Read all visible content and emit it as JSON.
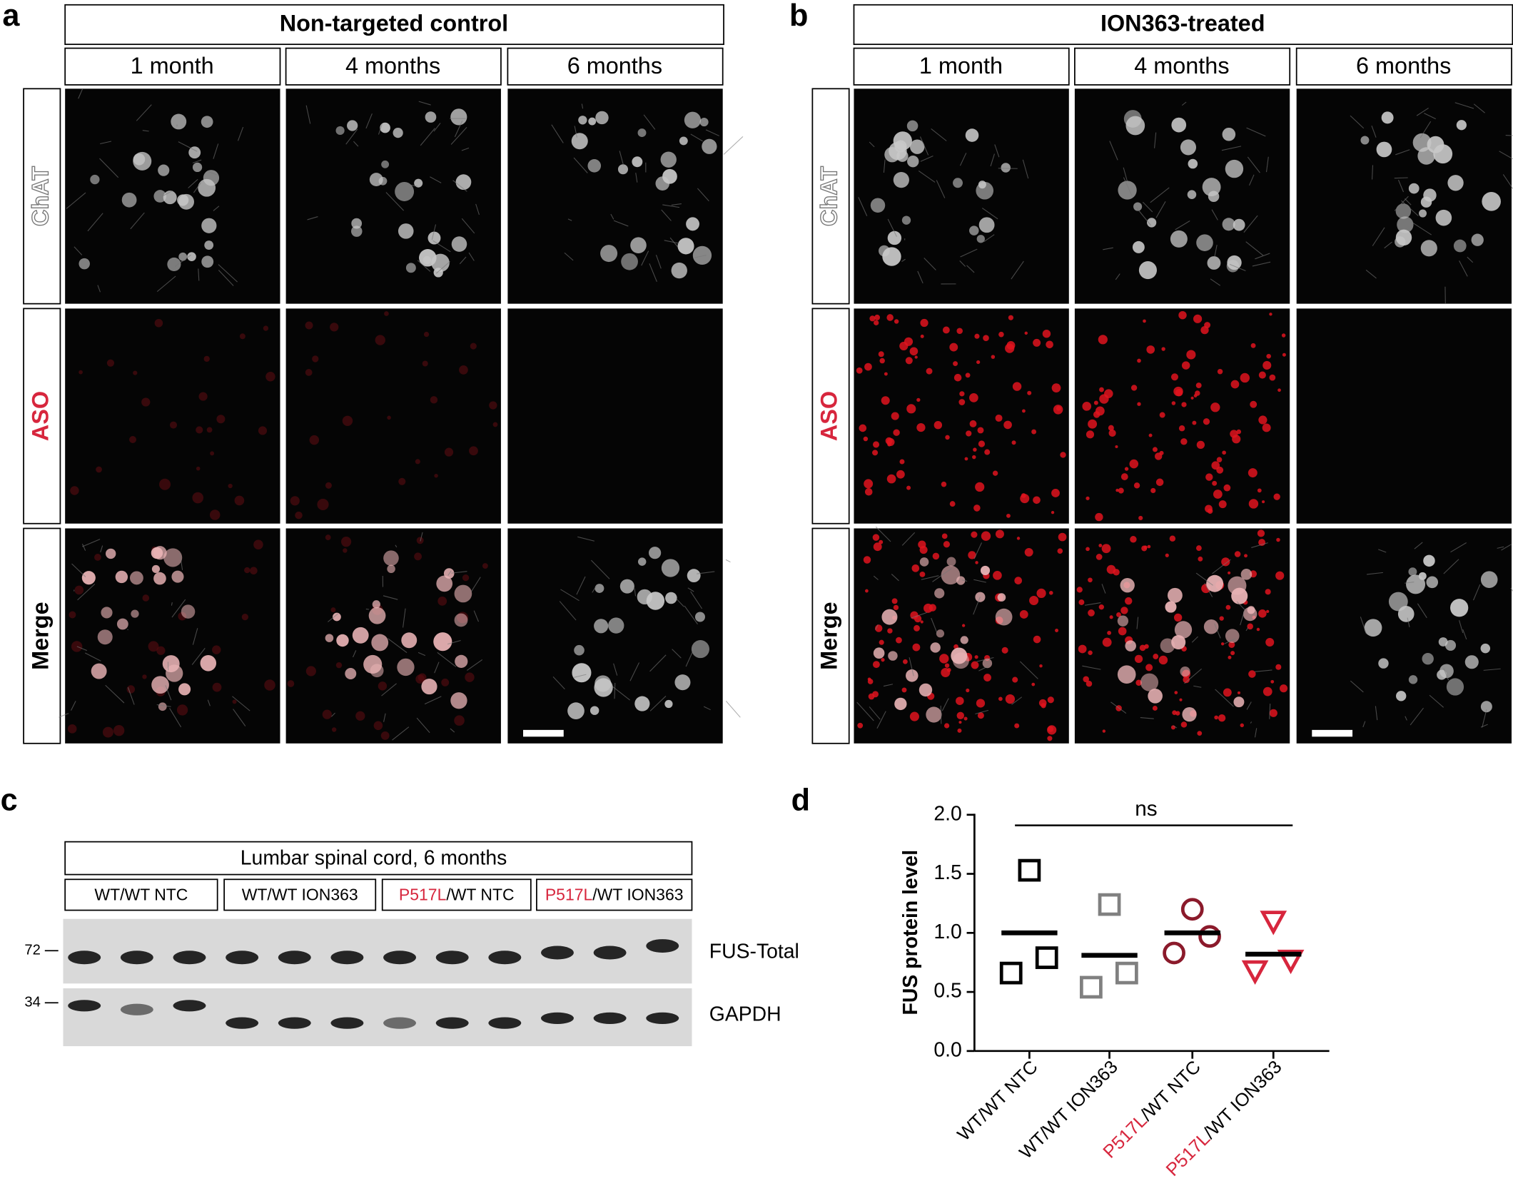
{
  "panel_a": {
    "letter": "a",
    "title": "Non-targeted control",
    "columns": [
      "1 month",
      "4 months",
      "6 months"
    ],
    "rows": [
      "ChAT",
      "ASO",
      "Merge"
    ]
  },
  "panel_b": {
    "letter": "b",
    "title": "ION363-treated",
    "columns": [
      "1 month",
      "4 months",
      "6 months"
    ],
    "rows": [
      "ChAT",
      "ASO",
      "Merge"
    ]
  },
  "panel_c": {
    "letter": "c",
    "title": "Lumbar spinal cord, 6 months",
    "groups": [
      [
        "WT/WT NTC"
      ],
      [
        "WT/WT ION363"
      ],
      [
        "P517L",
        "/WT NTC"
      ],
      [
        "P517L",
        "/WT ION363"
      ]
    ],
    "highlight_color": "#d7263d",
    "markers": [
      72,
      34
    ],
    "bands": [
      "FUS-Total",
      "GAPDH"
    ]
  },
  "chart_data": {
    "type": "scatter",
    "letter": "d",
    "y_label": "FUS protein level",
    "categories": [
      [
        "WT/WT  NTC"
      ],
      [
        "WT/WT  ION363"
      ],
      [
        "P517L",
        "/WT  NTC"
      ],
      [
        "P517L",
        "/WT  ION363"
      ]
    ],
    "highlight_color": "#d7263d",
    "series": [
      {
        "color": "#000000",
        "marker": "square",
        "values": [
          1.53,
          0.66,
          0.79
        ],
        "mean": 1.0
      },
      {
        "color": "#808080",
        "marker": "square",
        "values": [
          1.24,
          0.54,
          0.66
        ],
        "mean": 0.81
      },
      {
        "color": "#8b1a2b",
        "marker": "circle",
        "values": [
          1.2,
          0.83,
          0.97
        ],
        "mean": 1.0
      },
      {
        "color": "#d7263d",
        "marker": "triangle-down",
        "values": [
          1.1,
          0.68,
          0.77
        ],
        "mean": 0.82
      }
    ],
    "ylim": [
      0,
      2
    ],
    "yticks": [
      {
        "value": 0,
        "label": "0.0"
      },
      0.5,
      {
        "value": 1,
        "label": "1.0"
      },
      1.5,
      {
        "value": 2,
        "label": "2.0"
      }
    ],
    "annotation": "ns"
  }
}
